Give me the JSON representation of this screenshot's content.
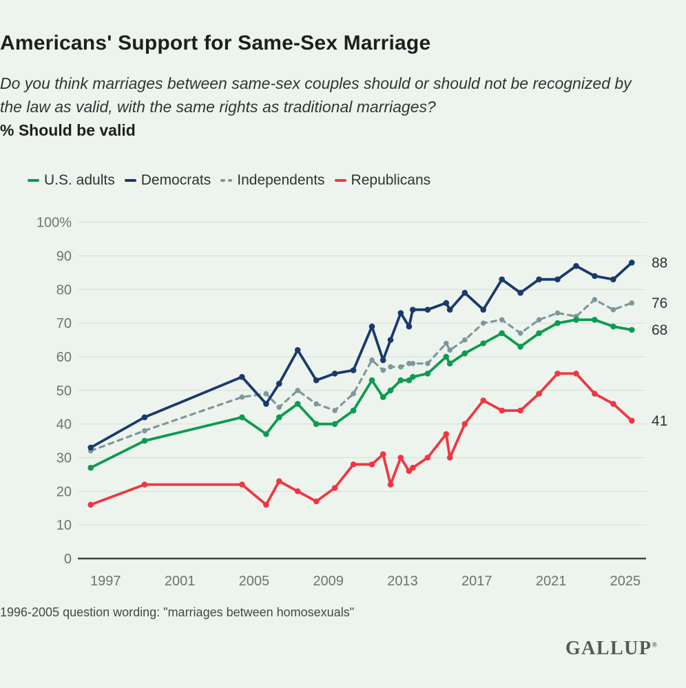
{
  "header": {
    "title": "Americans' Support for Same-Sex Marriage",
    "question": "Do you think marriages between same-sex couples should or should not be recognized by the law as valid, with the same rights as traditional marriages?",
    "metric_label": "% Should be valid"
  },
  "chart_data": {
    "type": "line",
    "title": "Americans' Support for Same-Sex Marriage",
    "ylabel": "% Should be valid",
    "ylim": [
      0,
      100
    ],
    "grid": true,
    "legend_position": "top",
    "x": [
      1996.2,
      1999.1,
      2004.35,
      2005.65,
      2006.35,
      2007.35,
      2008.35,
      2009.35,
      2010.35,
      2011.35,
      2011.95,
      2012.35,
      2012.9,
      2013.35,
      2013.55,
      2014.35,
      2015.35,
      2015.55,
      2016.35,
      2017.35,
      2018.35,
      2019.35,
      2020.35,
      2021.35,
      2022.35,
      2023.35,
      2024.35,
      2025.35
    ],
    "x_axis": {
      "ticks": [
        {
          "value": 1997,
          "label": "1997"
        },
        {
          "value": 2001,
          "label": "2001"
        },
        {
          "value": 2005,
          "label": "2005"
        },
        {
          "value": 2009,
          "label": "2009"
        },
        {
          "value": 2013,
          "label": "2013"
        },
        {
          "value": 2017,
          "label": "2017"
        },
        {
          "value": 2021,
          "label": "2021"
        },
        {
          "value": 2025,
          "label": "2025"
        }
      ]
    },
    "y_axis": {
      "ticks": [
        {
          "value": 100,
          "label": "100%"
        },
        {
          "value": 90,
          "label": "90"
        },
        {
          "value": 80,
          "label": "80"
        },
        {
          "value": 70,
          "label": "70"
        },
        {
          "value": 60,
          "label": "60"
        },
        {
          "value": 50,
          "label": "50"
        },
        {
          "value": 40,
          "label": "40"
        },
        {
          "value": 30,
          "label": "30"
        },
        {
          "value": 20,
          "label": "20"
        },
        {
          "value": 10,
          "label": "10"
        },
        {
          "value": 0,
          "label": "0"
        }
      ]
    },
    "series": [
      {
        "id": "us-adults",
        "name": "U.S. adults",
        "color": "#0d9b4f",
        "style": "solid",
        "end_label": "68",
        "values": [
          27,
          35,
          42,
          37,
          42,
          46,
          40,
          40,
          44,
          53,
          48,
          50,
          53,
          53,
          54,
          55,
          60,
          58,
          61,
          64,
          67,
          63,
          67,
          70,
          71,
          71,
          69,
          68
        ]
      },
      {
        "id": "democrats",
        "name": "Democrats",
        "color": "#1a3a6b",
        "style": "solid",
        "end_label": "88",
        "values": [
          33,
          42,
          54,
          46,
          52,
          62,
          53,
          55,
          56,
          69,
          59,
          65,
          73,
          69,
          74,
          74,
          76,
          74,
          79,
          74,
          83,
          79,
          83,
          83,
          87,
          84,
          83,
          88
        ]
      },
      {
        "id": "independents",
        "name": "Independents",
        "color": "#7e979c",
        "style": "dashed",
        "end_label": "76",
        "values": [
          32,
          38,
          48,
          49,
          45,
          50,
          46,
          44,
          49,
          59,
          56,
          57,
          57,
          58,
          58,
          58,
          64,
          62,
          65,
          70,
          71,
          67,
          71,
          73,
          72,
          77,
          74,
          76
        ]
      },
      {
        "id": "republicans",
        "name": "Republicans",
        "color": "#ef3742",
        "style": "solid",
        "end_label": "41",
        "values": [
          16,
          22,
          22,
          16,
          23,
          20,
          17,
          21,
          28,
          28,
          31,
          22,
          30,
          26,
          27,
          30,
          37,
          30,
          40,
          47,
          44,
          44,
          49,
          55,
          55,
          49,
          46,
          41
        ]
      }
    ],
    "draw_order": [
      2,
      3,
      0,
      1
    ],
    "colors": {
      "background": "#edf4ee",
      "grid": "#d8ddd6",
      "axis": "#3c403e",
      "tick_text": "#6e7270",
      "value_label": "#2f3333"
    }
  },
  "footnote": "1996-2005 question wording: \"marriages between homosexuals\"",
  "branding": {
    "logo": "GALLUP",
    "registered_mark": "®"
  }
}
